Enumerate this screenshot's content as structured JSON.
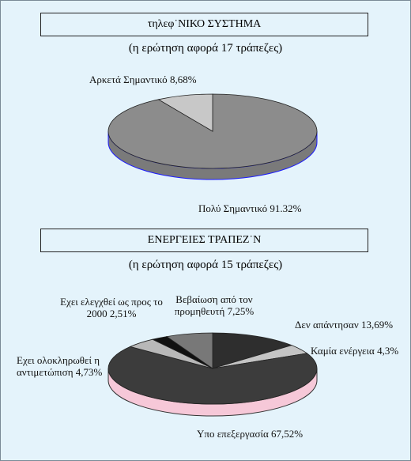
{
  "chart_data": [
    {
      "type": "pie",
      "title": "τηλεφ˙ΝΙΚΟ ΣΥΣΤΗΜΑ",
      "subtitle": "(η ερώτηση αφορά 17 τράπεζες)",
      "categories": [
        "Πολύ Σημαντικό",
        "Αρκετά Σημαντικό"
      ],
      "values": [
        91.32,
        8.68
      ],
      "value_labels": [
        "91.32%",
        "8,68%"
      ],
      "colors": [
        "#8c8c8c",
        "#c8c8c8"
      ],
      "side_color": "#7a7a7a",
      "edge_color": "#1a1aff"
    },
    {
      "type": "pie",
      "title": "ΕΝΕΡΓΕΙΕΣ ΤΡΑΠΕΖ˙Ν",
      "subtitle": "(η ερώτηση αφορά 15 τράπεζες)",
      "categories": [
        "Δεν απάντησαν",
        "Καμία ενέργεια",
        "Υπο επεξεργασία",
        "Εχει ολοκληρωθεί η αντιμετώπιση",
        "Εχει ελεγχθεί ως προς το 2000",
        "Βεβαίωση από τον προμηθευτή"
      ],
      "values": [
        13.69,
        4.3,
        67.52,
        4.73,
        2.51,
        7.25
      ],
      "value_labels": [
        "13,69%",
        "4,3%",
        "67,52%",
        "4,73%",
        "2,51%",
        "7,25%"
      ],
      "colors": [
        "#2e2e2e",
        "#c4c4c4",
        "#3c3c3c",
        "#b8b8b8",
        "#111111",
        "#787878"
      ],
      "side_color": "#f6c8d8",
      "edge_color": "#333333"
    }
  ]
}
